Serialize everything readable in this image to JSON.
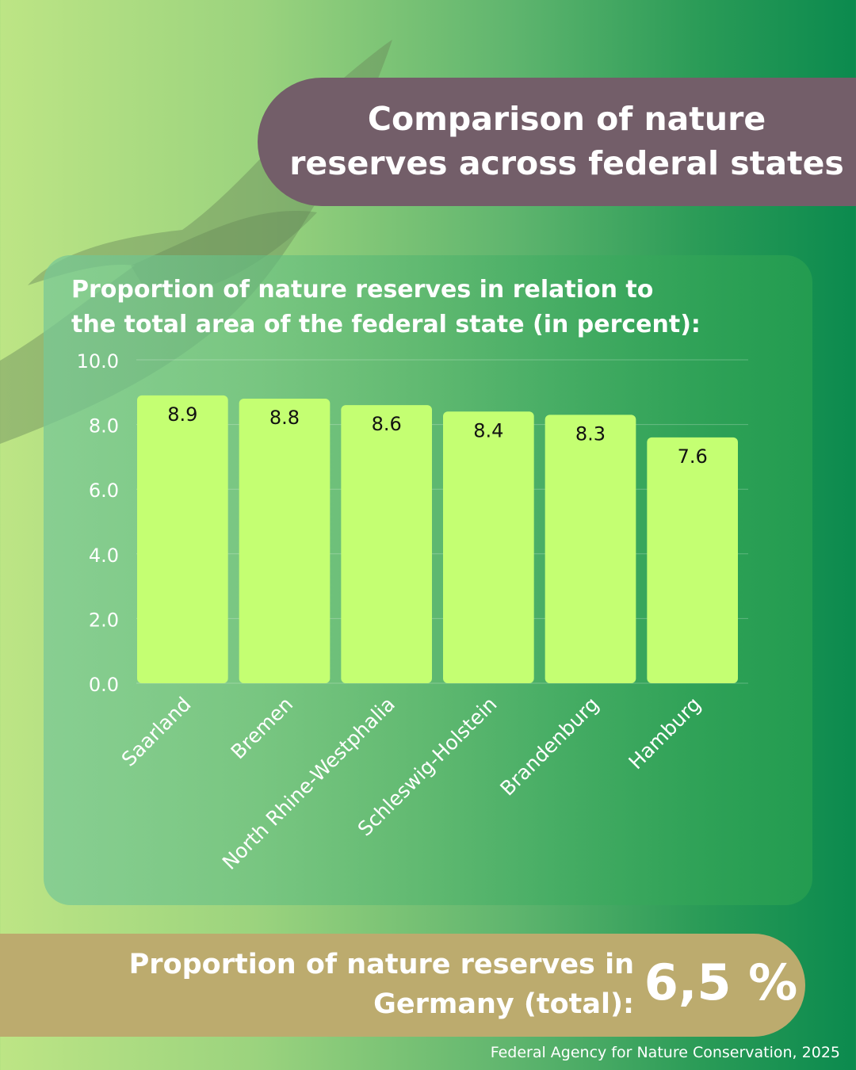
{
  "title": {
    "line1": "Comparison of nature",
    "line2": "reserves across federal states"
  },
  "chart_data": {
    "type": "bar",
    "title": "Proportion of nature reserves in relation to the total area of the federal state (in percent):",
    "title_line1": "Proportion of nature reserves in relation to",
    "title_line2": "the total area of the federal state (in percent):",
    "categories": [
      "Saarland",
      "Bremen",
      "North Rhine-Westphalia",
      "Schleswig-Holstein",
      "Brandenburg",
      "Hamburg"
    ],
    "values": [
      8.9,
      8.8,
      8.6,
      8.4,
      8.3,
      7.6
    ],
    "value_labels": [
      "8.9",
      "8.8",
      "8.6",
      "8.4",
      "8.3",
      "7.6"
    ],
    "ylim": [
      0,
      10
    ],
    "yticks": [
      "0.0",
      "2.0",
      "4.0",
      "6.0",
      "8.0",
      "10.0"
    ],
    "ytick_values": [
      0,
      2,
      4,
      6,
      8,
      10
    ],
    "xlabel": "",
    "ylabel": "",
    "grid": true,
    "bar_color": "#c4ff72"
  },
  "total": {
    "line1": "Proportion of nature reserves in",
    "line2": "Germany (total):",
    "value": "6,5 %"
  },
  "source": "Federal Agency for Nature Conservation, 2025",
  "colors": {
    "title_pill": "#735e69",
    "total_pill": "#bcab6e",
    "bar": "#c4ff72"
  }
}
